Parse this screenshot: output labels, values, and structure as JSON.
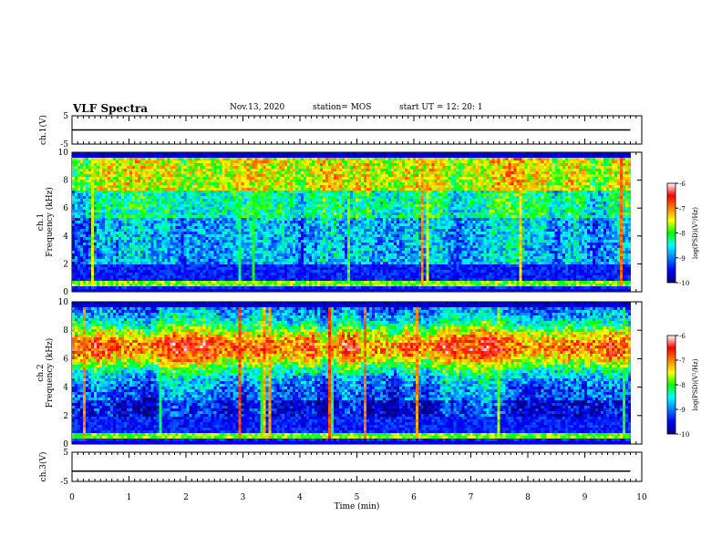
{
  "header": {
    "title": "VLF Spectra",
    "date": "Nov.13, 2020",
    "station": "station= MOS",
    "start": "start  UT =   12: 20: 1"
  },
  "chart_data": [
    {
      "type": "line",
      "panel": "ch.1 voltage",
      "ylabel": "ch.1(V)",
      "ylim": [
        -5,
        5
      ],
      "yticks": [
        "5",
        "-5"
      ],
      "xlim": [
        0,
        10
      ],
      "series": [
        {
          "x": [
            0,
            9.8
          ],
          "y": [
            0,
            0
          ]
        }
      ]
    },
    {
      "type": "heatmap",
      "panel": "ch.1 spectrogram",
      "ylabel_line1": "ch.1",
      "ylabel_line2": "Frequency (kHz)",
      "ylim": [
        0,
        10
      ],
      "yticks": [
        "0",
        "2",
        "4",
        "6",
        "8",
        "10"
      ],
      "xlim": [
        0,
        10
      ],
      "data_xlim": [
        0,
        9.8
      ],
      "colorbar": {
        "label": "log(PSD)(V²/Hz)",
        "range": [
          -10,
          -6
        ],
        "ticks": [
          "-6",
          "-7",
          "-8",
          "-9",
          "-10"
        ]
      }
    },
    {
      "type": "heatmap",
      "panel": "ch.2 spectrogram",
      "ylabel_line1": "ch.2",
      "ylabel_line2": "Frequency (kHz)",
      "ylim": [
        0,
        10
      ],
      "yticks": [
        "0",
        "2",
        "4",
        "6",
        "8",
        "10"
      ],
      "xlim": [
        0,
        10
      ],
      "data_xlim": [
        0,
        9.8
      ],
      "colorbar": {
        "label": "log(PSD)(V²/Hz)",
        "range": [
          -10,
          -6
        ],
        "ticks": [
          "-6",
          "-7",
          "-8",
          "-9",
          "-10"
        ]
      }
    },
    {
      "type": "line",
      "panel": "ch.3 voltage",
      "ylabel": "ch.3(V)",
      "ylim": [
        -5,
        5
      ],
      "yticks": [
        "5",
        "-5"
      ],
      "xlim": [
        0,
        10
      ],
      "xlabel": "Time (min)",
      "xticks": [
        "0",
        "1",
        "2",
        "3",
        "4",
        "5",
        "6",
        "7",
        "8",
        "9",
        "10"
      ],
      "series": [
        {
          "x": [
            0,
            9.8
          ],
          "y": [
            -1.5,
            -1.5
          ]
        }
      ]
    }
  ]
}
